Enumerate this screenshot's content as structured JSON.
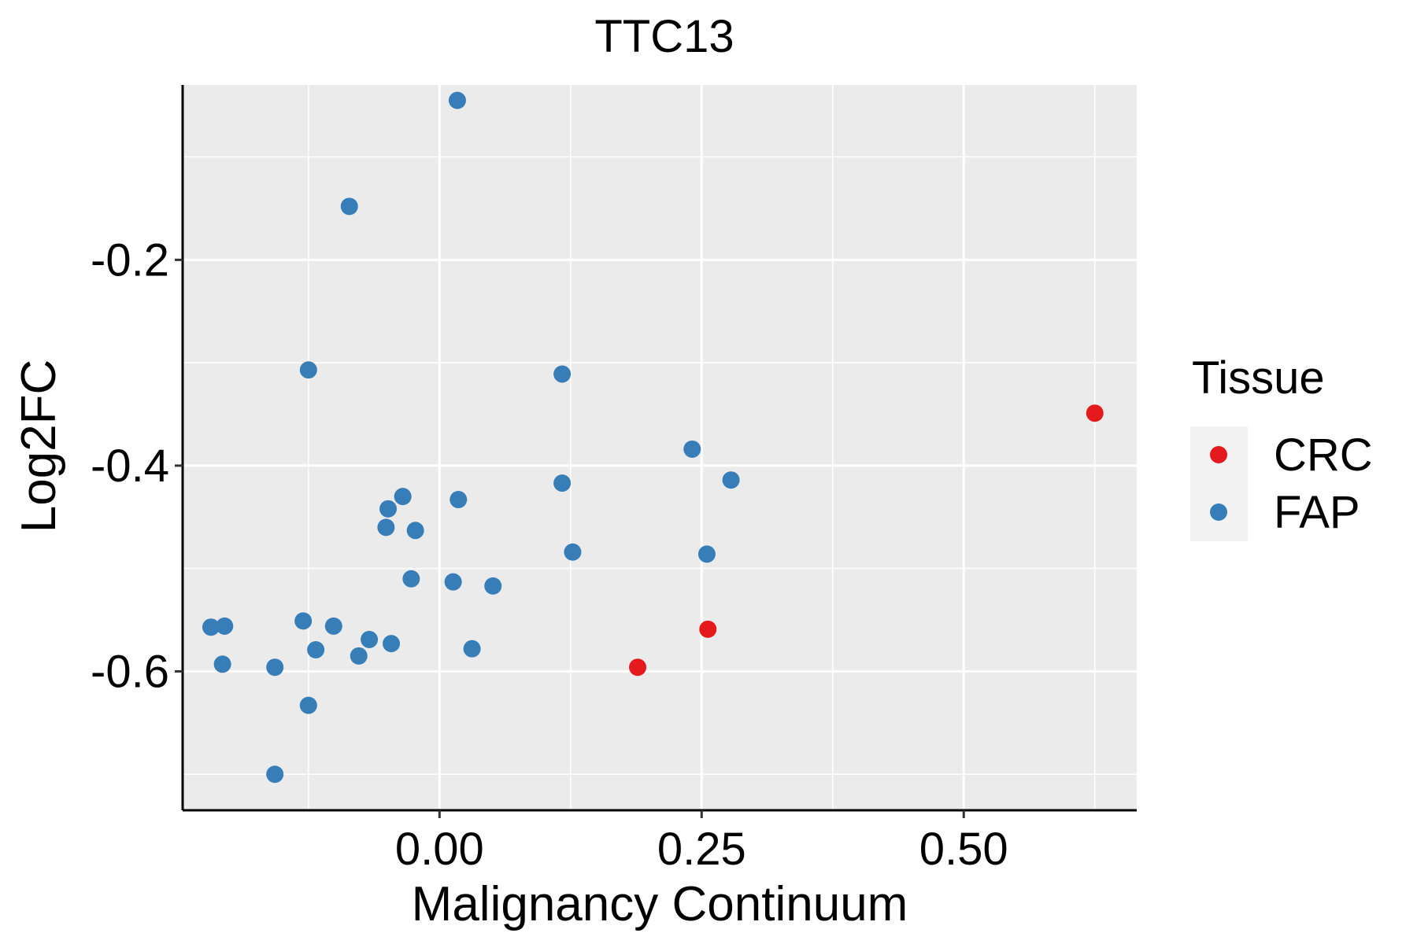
{
  "chart_data": {
    "type": "scatter",
    "title": "TTC13",
    "xlabel": "Malignancy Continuum",
    "ylabel": "Log2FC",
    "xlim": [
      -0.245,
      0.665
    ],
    "ylim": [
      -0.735,
      -0.03
    ],
    "x_ticks": [
      0.0,
      0.25,
      0.5
    ],
    "x_tick_labels": [
      "0.00",
      "0.25",
      "0.50"
    ],
    "x_minor_gridlines": [
      -0.125,
      0.125,
      0.375,
      0.625
    ],
    "y_ticks": [
      -0.2,
      -0.4,
      -0.6
    ],
    "y_tick_labels": [
      "-0.2",
      "-0.4",
      "-0.6"
    ],
    "y_minor_gridlines": [
      -0.1,
      -0.3,
      -0.5,
      -0.7
    ],
    "grid": true,
    "legend": {
      "title": "Tissue",
      "position": "right",
      "entries": [
        {
          "label": "CRC",
          "color": "#E41A1C"
        },
        {
          "label": "FAP",
          "color": "#377EB8"
        }
      ]
    },
    "series": [
      {
        "name": "CRC",
        "color": "#E41A1C",
        "points": [
          {
            "x": 0.625,
            "y": -0.349
          },
          {
            "x": 0.256,
            "y": -0.559
          },
          {
            "x": 0.189,
            "y": -0.596
          }
        ]
      },
      {
        "name": "FAP",
        "color": "#377EB8",
        "points": [
          {
            "x": 0.017,
            "y": -0.045
          },
          {
            "x": -0.086,
            "y": -0.148
          },
          {
            "x": -0.125,
            "y": -0.307
          },
          {
            "x": 0.117,
            "y": -0.311
          },
          {
            "x": 0.241,
            "y": -0.384
          },
          {
            "x": 0.278,
            "y": -0.414
          },
          {
            "x": 0.117,
            "y": -0.417
          },
          {
            "x": -0.035,
            "y": -0.43
          },
          {
            "x": 0.018,
            "y": -0.433
          },
          {
            "x": -0.049,
            "y": -0.442
          },
          {
            "x": -0.051,
            "y": -0.46
          },
          {
            "x": -0.023,
            "y": -0.463
          },
          {
            "x": 0.127,
            "y": -0.484
          },
          {
            "x": 0.255,
            "y": -0.486
          },
          {
            "x": -0.027,
            "y": -0.51
          },
          {
            "x": 0.013,
            "y": -0.513
          },
          {
            "x": 0.051,
            "y": -0.517
          },
          {
            "x": -0.13,
            "y": -0.551
          },
          {
            "x": -0.101,
            "y": -0.556
          },
          {
            "x": -0.205,
            "y": -0.556
          },
          {
            "x": -0.218,
            "y": -0.557
          },
          {
            "x": -0.067,
            "y": -0.569
          },
          {
            "x": -0.046,
            "y": -0.573
          },
          {
            "x": 0.031,
            "y": -0.578
          },
          {
            "x": -0.118,
            "y": -0.579
          },
          {
            "x": -0.077,
            "y": -0.585
          },
          {
            "x": -0.207,
            "y": -0.593
          },
          {
            "x": -0.157,
            "y": -0.596
          },
          {
            "x": -0.125,
            "y": -0.633
          },
          {
            "x": -0.157,
            "y": -0.7
          }
        ]
      }
    ]
  }
}
